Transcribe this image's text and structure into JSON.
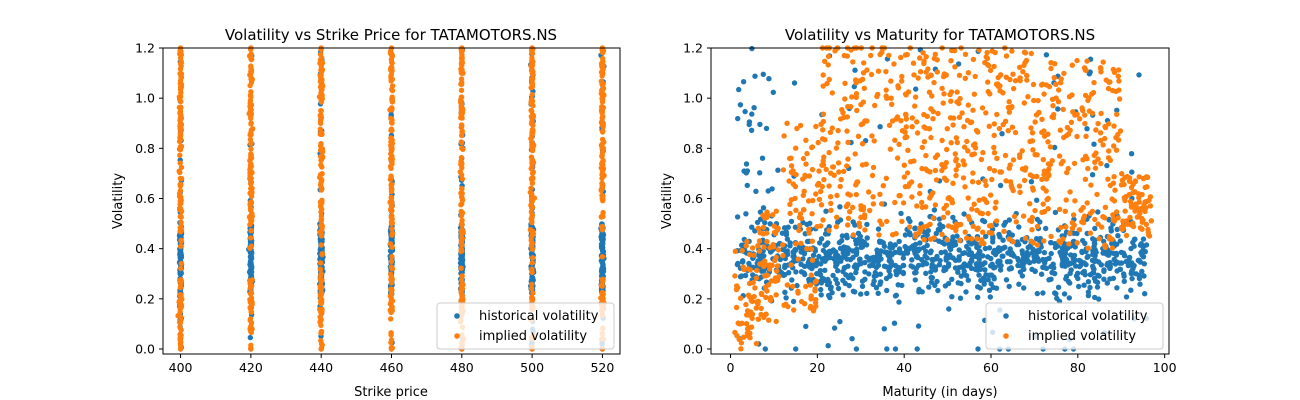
{
  "chart_data": [
    {
      "type": "scatter",
      "title": "Volatility vs Strike Price for TATAMOTORS.NS",
      "xlabel": "Strike price",
      "ylabel": "Volatility",
      "xlim": [
        395,
        525
      ],
      "ylim": [
        -0.02,
        1.2
      ],
      "xticks": [
        400,
        420,
        440,
        460,
        480,
        500,
        520
      ],
      "yticks": [
        0.0,
        0.2,
        0.4,
        0.6,
        0.8,
        1.0,
        1.2
      ],
      "grid": false,
      "legend_position": "lower-right",
      "strikes": [
        400,
        420,
        440,
        460,
        480,
        500,
        520
      ],
      "series": [
        {
          "name": "historical volatility",
          "color": "#1f77b4",
          "distribution": "dense vertical columns at each strike, concentrated 0.2–0.5, full extent 0.0–1.2"
        },
        {
          "name": "implied volatility",
          "color": "#ff7f0e",
          "distribution": "dense vertical columns at each strike spanning 0.0–1.2, overlaying historical"
        }
      ]
    },
    {
      "type": "scatter",
      "title": "Volatility vs Maturity for TATAMOTORS.NS",
      "xlabel": "Maturity (in days)",
      "ylabel": "Volatility",
      "xlim": [
        -4.5,
        101
      ],
      "ylim": [
        -0.02,
        1.2
      ],
      "xticks": [
        0,
        20,
        40,
        60,
        80,
        100
      ],
      "yticks": [
        0.0,
        0.2,
        0.4,
        0.6,
        0.8,
        1.0,
        1.2
      ],
      "grid": false,
      "legend_position": "lower-right",
      "series": [
        {
          "name": "historical volatility",
          "color": "#1f77b4",
          "distribution": "clustered mostly 0.25–0.45 for maturities 2–95 days, sparse spread up to 1.2"
        },
        {
          "name": "implied volatility",
          "color": "#ff7f0e",
          "distribution": "rises from near 0 at 1 day to 0.5–1.2 by ~25 days, spread 0.4–1.1 for 40–90 days"
        }
      ]
    }
  ]
}
